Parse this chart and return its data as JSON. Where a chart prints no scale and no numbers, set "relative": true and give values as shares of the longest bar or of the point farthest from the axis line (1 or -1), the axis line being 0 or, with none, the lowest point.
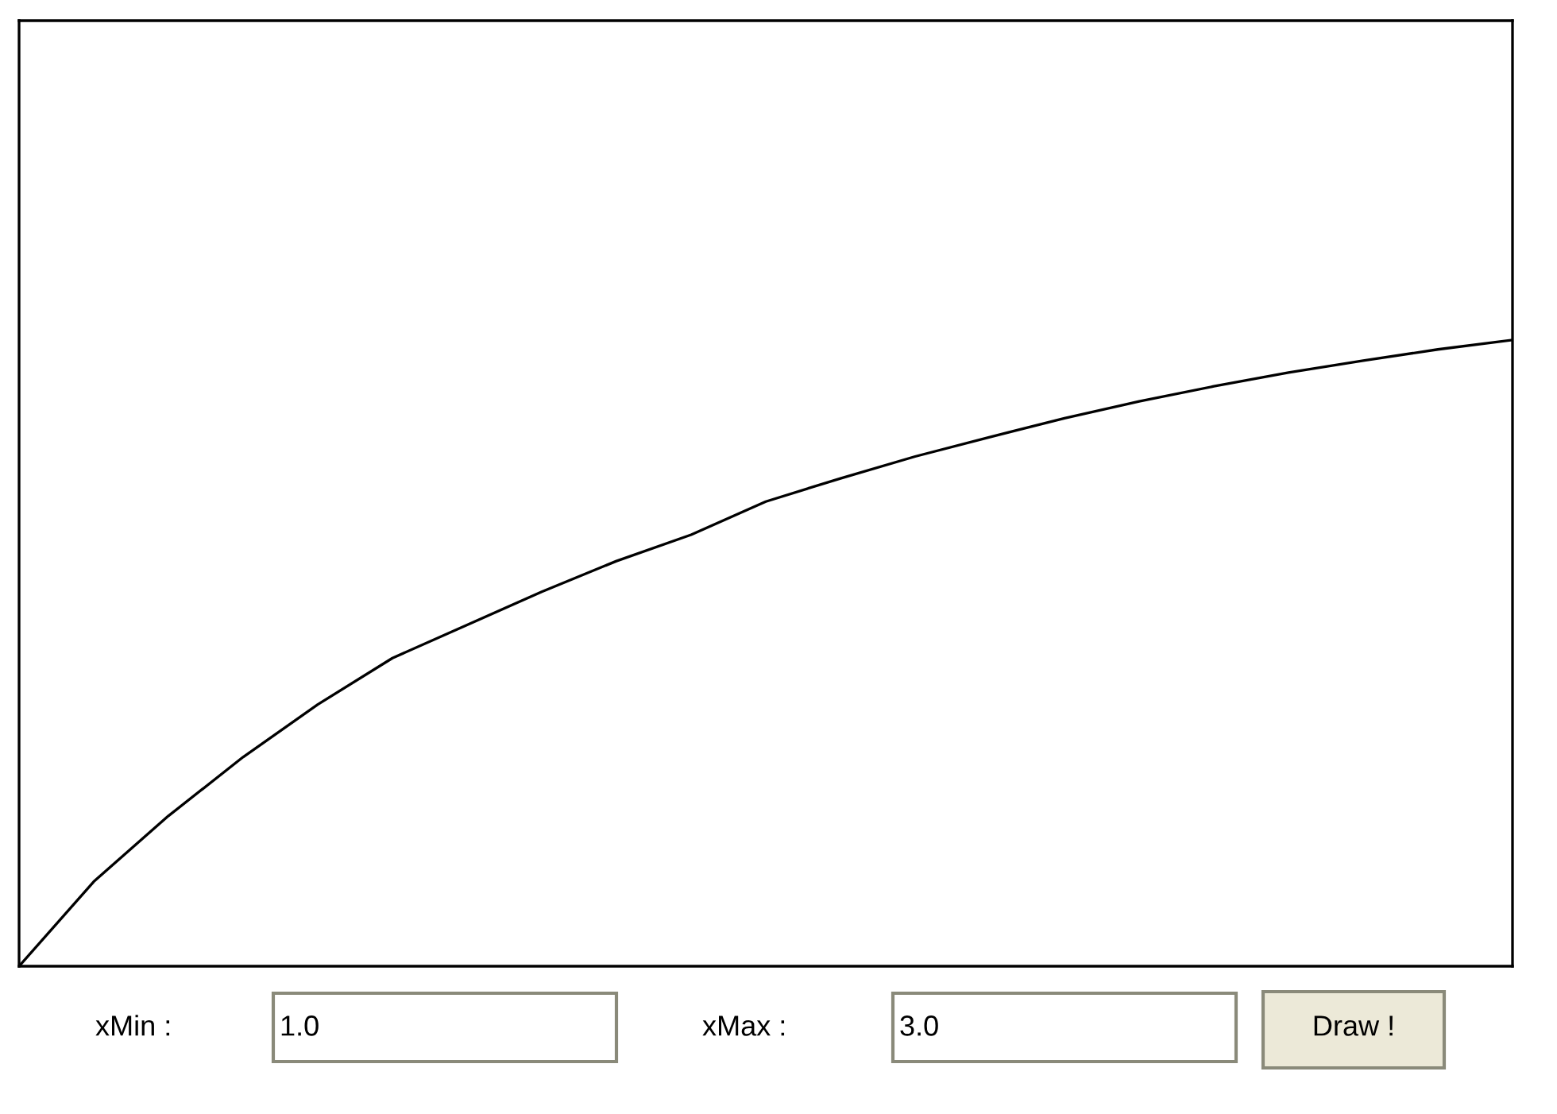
{
  "chart_data": {
    "type": "line",
    "relative": true,
    "categories": [
      null,
      null,
      null,
      null,
      null,
      null,
      null,
      null,
      null,
      null,
      null,
      null,
      null,
      null,
      null,
      null,
      null,
      null,
      null,
      null,
      null
    ],
    "series": [
      {
        "color": "#000000",
        "values": [
          0,
          0.135,
          0.24,
          0.334,
          0.418,
          0.492,
          0.545,
          0.598,
          0.647,
          0.689,
          0.742,
          0.779,
          0.814,
          0.845,
          0.875,
          0.902,
          0.926,
          0.948,
          0.967,
          0.985,
          1
        ]
      }
    ],
    "annotations": [
      "xMin :",
      "1.0",
      "xMax :",
      "3.0",
      "Draw !"
    ]
  }
}
